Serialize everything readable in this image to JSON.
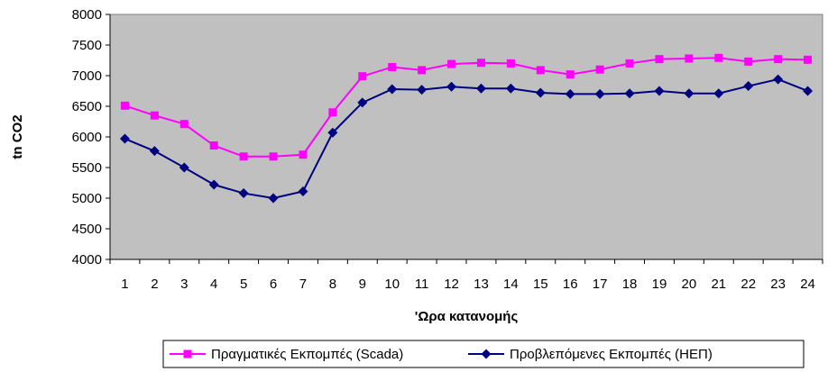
{
  "chart_data": {
    "type": "line",
    "title": "",
    "xlabel": "'Ωρα κατανομής",
    "ylabel": "tn CO2",
    "ylim": [
      4000,
      8000
    ],
    "yticks": [
      4000,
      4500,
      5000,
      5500,
      6000,
      6500,
      7000,
      7500,
      8000
    ],
    "grid": false,
    "plot_background": "#c0c0c0",
    "legend_position": "bottom",
    "categories": [
      "1",
      "2",
      "3",
      "4",
      "5",
      "6",
      "7",
      "8",
      "9",
      "10",
      "11",
      "12",
      "13",
      "14",
      "15",
      "16",
      "17",
      "18",
      "19",
      "20",
      "21",
      "22",
      "23",
      "24"
    ],
    "series": [
      {
        "name": "Πραγματικές Εκπομπές (Scada)",
        "color": "#ff00ff",
        "marker": "square",
        "values": [
          6510,
          6350,
          6210,
          5860,
          5680,
          5680,
          5710,
          6400,
          6990,
          7140,
          7090,
          7190,
          7210,
          7200,
          7090,
          7020,
          7100,
          7200,
          7270,
          7280,
          7290,
          7230,
          7270,
          7260
        ]
      },
      {
        "name": "Προβλεπόμενες Εκπομπές (ΗΕΠ)",
        "color": "#000080",
        "marker": "diamond",
        "values": [
          5970,
          5770,
          5500,
          5220,
          5080,
          5000,
          5110,
          6070,
          6560,
          6780,
          6770,
          6820,
          6790,
          6790,
          6720,
          6700,
          6700,
          6710,
          6750,
          6710,
          6710,
          6830,
          6940,
          6750
        ]
      }
    ]
  }
}
